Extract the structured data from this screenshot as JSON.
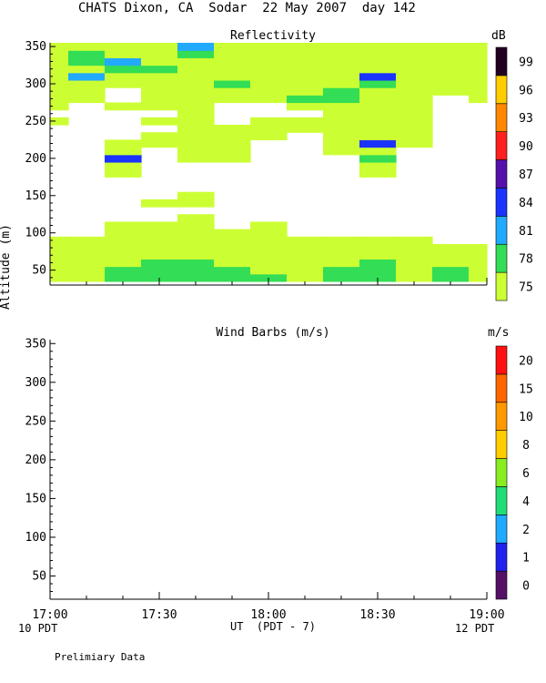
{
  "title": "CHATS Dixon, CA  Sodar  22 May 2007  day 142",
  "ylabel": "Altitude (m)",
  "xlabel": "UT  (PDT - 7)",
  "x_start_local": "10 PDT",
  "x_end_local": "12 PDT",
  "footer": "Prelimiary Data",
  "chart_data": [
    {
      "type": "heatmap",
      "title": "Reflectivity",
      "colorbar_unit": "dB",
      "x_ticks": [
        "17:00",
        "17:30",
        "18:00",
        "18:30",
        "19:00"
      ],
      "x_range": [
        "17:00",
        "19:00"
      ],
      "y_ticks": [
        50,
        100,
        150,
        200,
        250,
        300,
        350
      ],
      "ylim": [
        30,
        355
      ],
      "levels": [
        75,
        78,
        81,
        84,
        87,
        90,
        93,
        96,
        99
      ],
      "level_colors": [
        "#ccff33",
        "#33dd55",
        "#22aaff",
        "#1a33ff",
        "#5511aa",
        "#ff2020",
        "#ff8800",
        "#ffcc00",
        "#220022"
      ],
      "times": [
        "17:00",
        "17:10",
        "17:20",
        "17:30",
        "17:40",
        "17:50",
        "18:00",
        "18:10",
        "18:20",
        "18:30",
        "18:40",
        "18:50",
        "19:00"
      ],
      "altitudes": [
        40,
        50,
        60,
        70,
        80,
        90,
        100,
        110,
        120,
        130,
        140,
        150,
        160,
        170,
        180,
        190,
        200,
        210,
        220,
        230,
        240,
        250,
        260,
        270,
        280,
        290,
        300,
        310,
        320,
        330,
        340,
        350
      ],
      "values_dB": [
        [
          77,
          77,
          79,
          80,
          80,
          79,
          78,
          77,
          80,
          79,
          77,
          79,
          77
        ],
        [
          76,
          77,
          78,
          79,
          79,
          78,
          76,
          76,
          78,
          79,
          77,
          78,
          77
        ],
        [
          76,
          76,
          77,
          78,
          78,
          77,
          76,
          76,
          77,
          78,
          77,
          77,
          76
        ],
        [
          75,
          76,
          76,
          77,
          77,
          76,
          75,
          76,
          76,
          77,
          76,
          76,
          76
        ],
        [
          75,
          75,
          76,
          76,
          76,
          76,
          75,
          75,
          75,
          76,
          76,
          75,
          75
        ],
        [
          75,
          75,
          75,
          76,
          76,
          76,
          75,
          75,
          75,
          75,
          75,
          74,
          74
        ],
        [
          74,
          74,
          75,
          75,
          76,
          75,
          76,
          74,
          74,
          74,
          74,
          73,
          74
        ],
        [
          74,
          73,
          75,
          75,
          75,
          74,
          75,
          73,
          74,
          73,
          73,
          73,
          73
        ],
        [
          73,
          73,
          74,
          74,
          75,
          74,
          74,
          73,
          73,
          73,
          73,
          73,
          73
        ],
        [
          73,
          73,
          73,
          74,
          74,
          74,
          73,
          73,
          73,
          73,
          73,
          73,
          73
        ],
        [
          73,
          73,
          74,
          75,
          75,
          74,
          73,
          73,
          73,
          73,
          73,
          73,
          73
        ],
        [
          73,
          73,
          73,
          74,
          75,
          74,
          73,
          73,
          73,
          73,
          73,
          73,
          73
        ],
        [
          73,
          73,
          73,
          73,
          73,
          73,
          73,
          73,
          73,
          73,
          73,
          73,
          73
        ],
        [
          73,
          73,
          73,
          73,
          73,
          73,
          73,
          73,
          73,
          73,
          73,
          73,
          73
        ],
        [
          73,
          73,
          75,
          73,
          73,
          73,
          73,
          73,
          73,
          75,
          73,
          73,
          73
        ],
        [
          73,
          73,
          76,
          74,
          73,
          73,
          73,
          73,
          73,
          75,
          73,
          73,
          73
        ],
        [
          73,
          74,
          84,
          74,
          75,
          75,
          73,
          73,
          74,
          80,
          74,
          73,
          73
        ],
        [
          73,
          73,
          76,
          74,
          76,
          76,
          73,
          73,
          75,
          76,
          74,
          73,
          73
        ],
        [
          73,
          73,
          75,
          77,
          76,
          75,
          73,
          73,
          75,
          84,
          75,
          73,
          73
        ],
        [
          73,
          73,
          74,
          75,
          75,
          75,
          75,
          73,
          75,
          76,
          75,
          73,
          73
        ],
        [
          74,
          73,
          73,
          74,
          75,
          75,
          75,
          75,
          75,
          75,
          75,
          74,
          74
        ],
        [
          75,
          74,
          74,
          75,
          75,
          74,
          75,
          75,
          75,
          75,
          75,
          74,
          74
        ],
        [
          73,
          73,
          73,
          73,
          76,
          74,
          74,
          74,
          75,
          76,
          75,
          74,
          73
        ],
        [
          75,
          73,
          75,
          75,
          76,
          73,
          73,
          75,
          75,
          75,
          75,
          73,
          73
        ],
        [
          75,
          75,
          74,
          75,
          77,
          75,
          76,
          78,
          79,
          76,
          75,
          74,
          75
        ],
        [
          75,
          76,
          74,
          76,
          76,
          75,
          76,
          77,
          78,
          76,
          75,
          75,
          75
        ],
        [
          76,
          77,
          75,
          75,
          76,
          78,
          76,
          76,
          76,
          78,
          76,
          75,
          76
        ],
        [
          75,
          82,
          76,
          75,
          76,
          75,
          75,
          76,
          76,
          84,
          76,
          75,
          75
        ],
        [
          76,
          76,
          79,
          78,
          77,
          76,
          76,
          75,
          75,
          77,
          76,
          77,
          76
        ],
        [
          76,
          78,
          82,
          77,
          76,
          77,
          76,
          75,
          75,
          77,
          76,
          76,
          75
        ],
        [
          76,
          79,
          77,
          76,
          79,
          77,
          75,
          75,
          75,
          77,
          76,
          76,
          76
        ],
        [
          76,
          77,
          77,
          76,
          81,
          76,
          75,
          75,
          75,
          76,
          75,
          75,
          76
        ]
      ]
    },
    {
      "type": "scatter",
      "title": "Wind Barbs (m/s)",
      "colorbar_unit": "m/s",
      "x_ticks": [
        "17:00",
        "17:30",
        "18:00",
        "18:30",
        "19:00"
      ],
      "x_range": [
        "17:00",
        "19:00"
      ],
      "y_ticks": [
        50,
        100,
        150,
        200,
        250,
        300,
        350
      ],
      "ylim": [
        20,
        355
      ],
      "levels": [
        0,
        1,
        2,
        4,
        6,
        8,
        10,
        15,
        20
      ],
      "level_colors": [
        "#551166",
        "#2222ee",
        "#22aaff",
        "#22dd77",
        "#88ee22",
        "#ffcc00",
        "#ff9900",
        "#ff6600",
        "#ff1111"
      ],
      "points": []
    }
  ]
}
